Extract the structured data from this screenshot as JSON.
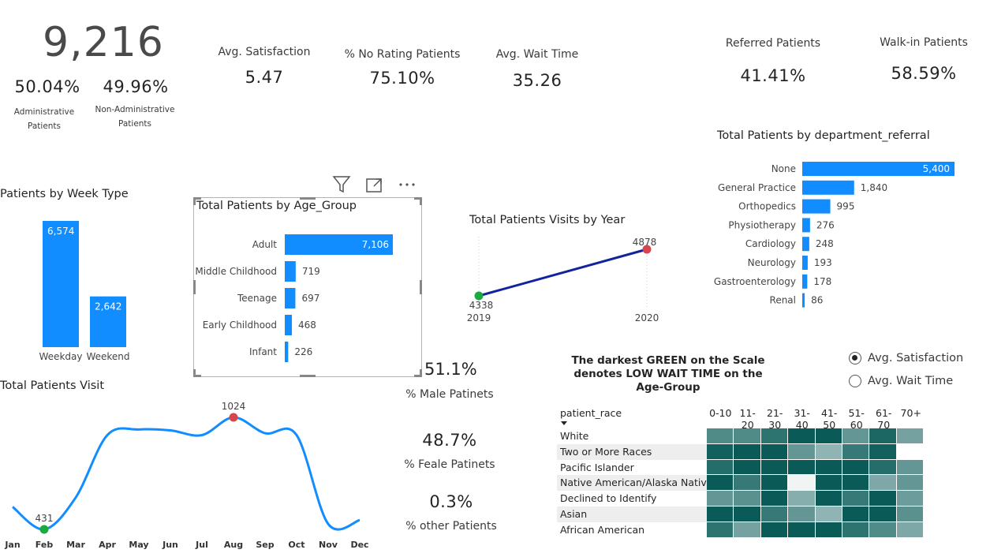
{
  "kpis": {
    "total_patients": "9,216",
    "admin_pct": "50.04%",
    "admin_label": "Administrative Patients",
    "nonadmin_pct": "49.96%",
    "nonadmin_label": "Non-Administrative Patients",
    "avg_satisfaction_label": "Avg. Satisfaction",
    "avg_satisfaction": "5.47",
    "no_rating_label": "% No Rating Patients",
    "no_rating": "75.10%",
    "avg_wait_label": "Avg. Wait Time",
    "avg_wait": "35.26",
    "referred_label": "Referred Patients",
    "referred": "41.41%",
    "walkin_label": "Walk-in Patients",
    "walkin": "58.59%"
  },
  "gender": {
    "male_pct": "51.1%",
    "male_label": "% Male Patinets",
    "female_pct": "48.7%",
    "female_label": "% Feale Patinets",
    "other_pct": "0.3%",
    "other_label": "% other Patients"
  },
  "heatmap_note": "The darkest GREEN on the Scale denotes LOW WAIT TIME on the Age-Group",
  "toggle": {
    "options": [
      "Avg. Satisfaction",
      "Avg. Wait Time"
    ],
    "selected": "Avg. Satisfaction"
  },
  "colors": {
    "bar": "#118DFF",
    "line_year": "#12239E",
    "min_marker": "#1AAB40",
    "max_marker": "#D64550"
  },
  "icons": [
    "filter-icon",
    "focus-mode-icon",
    "more-options-icon",
    "sort-down-icon"
  ],
  "chart_data": [
    {
      "id": "week_type",
      "type": "bar",
      "title": "Patients by Week Type",
      "categories": [
        "Weekday",
        "Weekend"
      ],
      "values": [
        6574,
        2642
      ],
      "value_labels": [
        "6,574",
        "2,642"
      ]
    },
    {
      "id": "age_group",
      "type": "bar",
      "orientation": "horizontal",
      "title": "Total Patients by Age_Group",
      "categories": [
        "Adult",
        "Middle Childhood",
        "Teenage",
        "Early Childhood",
        "Infant"
      ],
      "values": [
        7106,
        719,
        697,
        468,
        226
      ],
      "value_labels": [
        "7,106",
        "719",
        "697",
        "468",
        "226"
      ]
    },
    {
      "id": "visits_by_year",
      "type": "line",
      "title": "Total Patients Visits by Year",
      "x": [
        "2019",
        "2020"
      ],
      "values": [
        4338,
        4878
      ],
      "value_labels": [
        "4338",
        "4878"
      ]
    },
    {
      "id": "department_referral",
      "type": "bar",
      "orientation": "horizontal",
      "title": "Total Patients by department_referral",
      "categories": [
        "None",
        "General Practice",
        "Orthopedics",
        "Physiotherapy",
        "Cardiology",
        "Neurology",
        "Gastroenterology",
        "Renal"
      ],
      "values": [
        5400,
        1840,
        995,
        276,
        248,
        193,
        178,
        86
      ],
      "value_labels": [
        "5,400",
        "1,840",
        "995",
        "276",
        "248",
        "193",
        "178",
        "86"
      ]
    },
    {
      "id": "monthly_visits",
      "type": "line",
      "title": "Total Patients Visit",
      "x": [
        "Jan",
        "Feb",
        "Mar",
        "Apr",
        "May",
        "Jun",
        "Jul",
        "Aug",
        "Sep",
        "Oct",
        "Nov",
        "Dec"
      ],
      "values": [
        550,
        431,
        600,
        930,
        960,
        955,
        930,
        1024,
        940,
        930,
        460,
        480
      ],
      "annotations": [
        {
          "x": "Feb",
          "label": "431",
          "marker": "min"
        },
        {
          "x": "Aug",
          "label": "1024",
          "marker": "max"
        }
      ]
    },
    {
      "id": "race_heatmap",
      "type": "heatmap",
      "row_header": "patient_race",
      "columns": [
        "0-10",
        "11-20",
        "21-30",
        "31-40",
        "41-50",
        "51-60",
        "61-70",
        "70+"
      ],
      "rows": [
        "White",
        "Two or More Races",
        "Pacific Islander",
        "Native American/Alaska Native",
        "Declined to Identify",
        "Asian",
        "African American"
      ],
      "intensity": [
        [
          0.55,
          0.55,
          0.75,
          0.95,
          0.95,
          0.45,
          0.85,
          0.35
        ],
        [
          0.9,
          0.95,
          0.95,
          0.45,
          0.2,
          0.7,
          0.9,
          null
        ],
        [
          0.8,
          0.95,
          0.95,
          0.95,
          0.95,
          0.95,
          0.8,
          0.45
        ],
        [
          0.95,
          0.7,
          0.95,
          0.0,
          0.95,
          0.95,
          0.3,
          0.45
        ],
        [
          0.45,
          0.5,
          0.95,
          0.25,
          0.95,
          0.7,
          0.95,
          0.4
        ],
        [
          0.95,
          0.95,
          0.7,
          0.45,
          0.2,
          0.95,
          0.95,
          0.5
        ],
        [
          0.75,
          0.35,
          0.95,
          0.95,
          0.95,
          0.75,
          0.55,
          0.3
        ]
      ]
    }
  ]
}
